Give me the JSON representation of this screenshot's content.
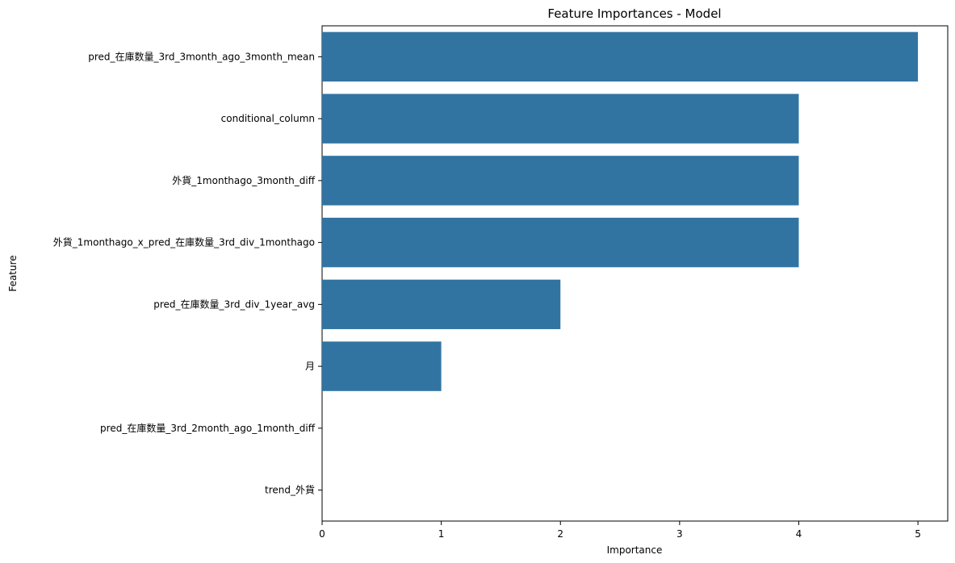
{
  "chart_data": {
    "type": "bar",
    "orientation": "horizontal",
    "title": "Feature Importances - Model",
    "xlabel": "Importance",
    "ylabel": "Feature",
    "xlim": [
      0,
      5.25
    ],
    "xticks": [
      0,
      1,
      2,
      3,
      4,
      5
    ],
    "grid": false,
    "bar_color": "#3274a1",
    "categories": [
      "pred_在庫数量_3rd_3month_ago_3month_mean",
      "conditional_column",
      "外貨_1monthago_3month_diff",
      "外貨_1monthago_x_pred_在庫数量_3rd_div_1monthago",
      "pred_在庫数量_3rd_div_1year_avg",
      "月",
      "pred_在庫数量_3rd_2month_ago_1month_diff",
      "trend_外貨"
    ],
    "values": [
      5,
      4,
      4,
      4,
      2,
      1,
      0,
      0
    ]
  }
}
